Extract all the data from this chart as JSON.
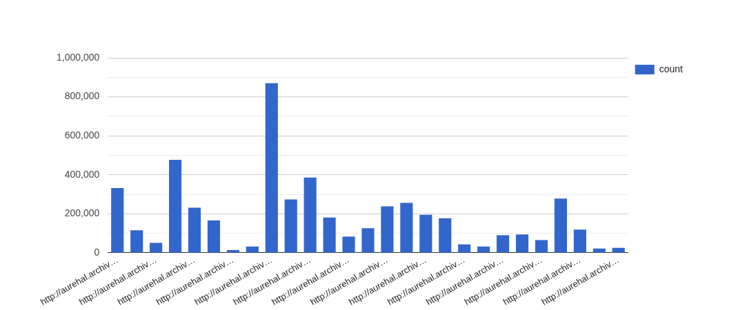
{
  "chart_data": {
    "type": "bar",
    "categories": [
      "http://aurehal.archiv…",
      null,
      "http://aurehal.archiv…",
      null,
      "http://aurehal.archiv…",
      null,
      "http://aurehal.archiv…",
      null,
      "http://aurehal.archiv…",
      null,
      "http://aurehal.archiv…",
      null,
      "http://aurehal.archiv…",
      null,
      "http://aurehal.archiv…",
      null,
      "http://aurehal.archiv…",
      null,
      "http://aurehal.archiv…",
      null,
      "http://aurehal.archiv…",
      null,
      "http://aurehal.archiv…",
      null,
      "http://aurehal.archiv…",
      null,
      "http://aurehal.archiv…"
    ],
    "series": [
      {
        "name": "count",
        "color": "#3366cc",
        "values": [
          332000,
          115000,
          51000,
          477000,
          231000,
          166000,
          14000,
          32000,
          870000,
          274000,
          386000,
          181000,
          83000,
          126000,
          238000,
          256000,
          195000,
          177000,
          43000,
          32000,
          90000,
          94000,
          65000,
          278000,
          119000,
          22000,
          25000
        ]
      }
    ],
    "ylim": [
      0,
      1000000
    ],
    "yticks": [
      0,
      {
        "value": 100000,
        "label": null
      },
      {
        "value": 200000,
        "label": "200,000"
      },
      {
        "value": 300000,
        "label": null
      },
      {
        "value": 400000,
        "label": "400,000"
      },
      {
        "value": 500000,
        "label": null
      },
      {
        "value": 600000,
        "label": "600,000"
      },
      {
        "value": 700000,
        "label": null
      },
      {
        "value": 800000,
        "label": "800,000"
      },
      {
        "value": 900000,
        "label": null
      },
      {
        "value": 1000000,
        "label": "1,000,000"
      }
    ],
    "grid": true,
    "legend": "top right"
  }
}
